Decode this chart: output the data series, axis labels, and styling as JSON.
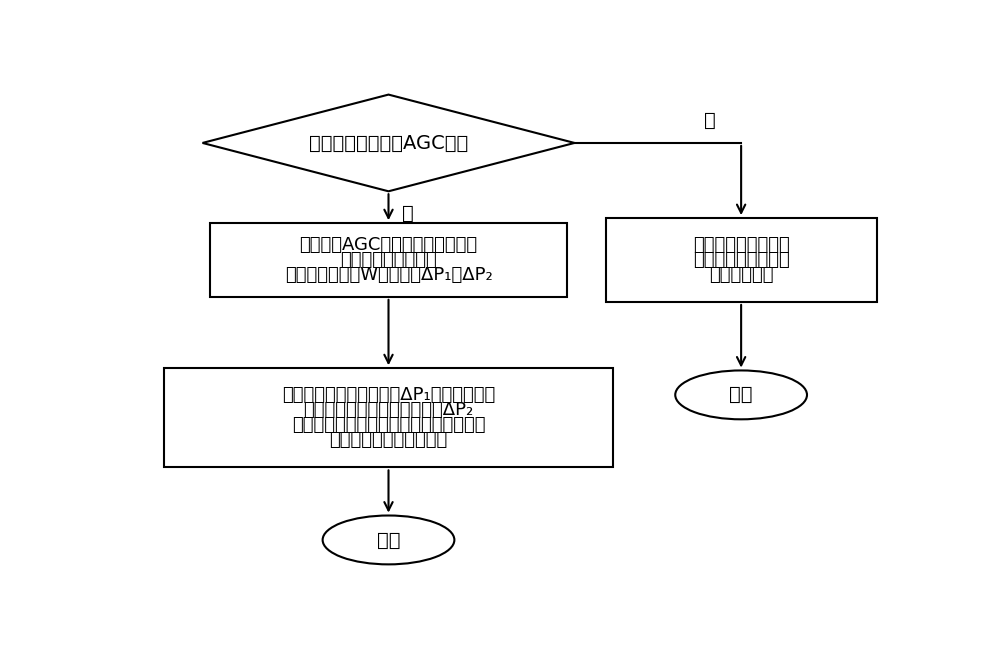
{
  "bg_color": "#ffffff",
  "line_color": "#000000",
  "box_fill": "#ffffff",
  "diamond_fill": "#ffffff",
  "oval_fill": "#ffffff",
  "font_size": 14,
  "diamond_text": "判断机组是否投入AGC模式",
  "yes_label": "是",
  "no_label": "否",
  "box1_text_lines": [
    "根据当前AGC指令和实际负荷指令",
    "计算功率指令偏差；",
    "由机组额定负荷W计算常量ΔP₁和ΔP₂"
  ],
  "box2_text_lines": [
    "判断功率指令偏差与常量ΔP₁的大小关系，",
    "然后根据判断结果并利用常量ΔP₂",
    "计算修正后的功率信号，并将修正后的功",
    "率信号传递给汽机调节器"
  ],
  "oval_bottom_text": "结束",
  "box_right_text_lines": [
    "传递给汽机调节器的",
    "功率信号仍为机组的",
    "实际功率信号"
  ],
  "oval_right_text": "结束"
}
